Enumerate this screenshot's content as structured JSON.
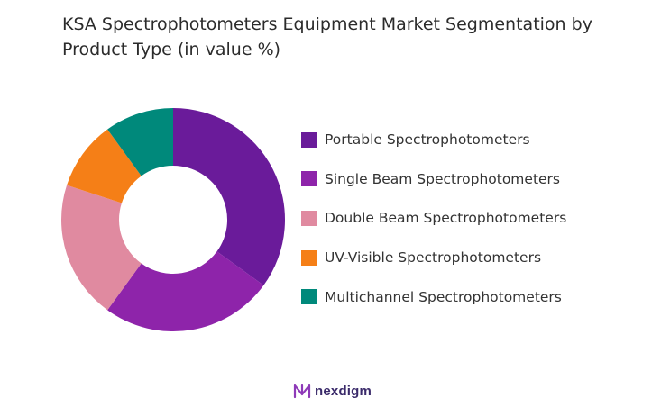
{
  "title": "KSA Spectrophotometers Equipment Market Segmentation by Product Type (in value %)",
  "logo": {
    "text": "nexdigm",
    "icon": "nexdigm-logo-icon"
  },
  "chart_data": {
    "type": "pie",
    "donut": true,
    "title": "KSA Spectrophotometers Equipment Market Segmentation by Product Type (in value %)",
    "legend_position": "right",
    "categories": [
      "Portable Spectrophotometers",
      "Single Beam Spectrophotometers",
      "Double Beam Spectrophotometers",
      "UV-Visible Spectrophotometers",
      "Multichannel Spectrophotometers"
    ],
    "values": [
      35,
      25,
      20,
      10,
      10
    ],
    "colors": [
      "#6a1b9a",
      "#8e24aa",
      "#e08aa0",
      "#f57f17",
      "#00897b"
    ]
  }
}
